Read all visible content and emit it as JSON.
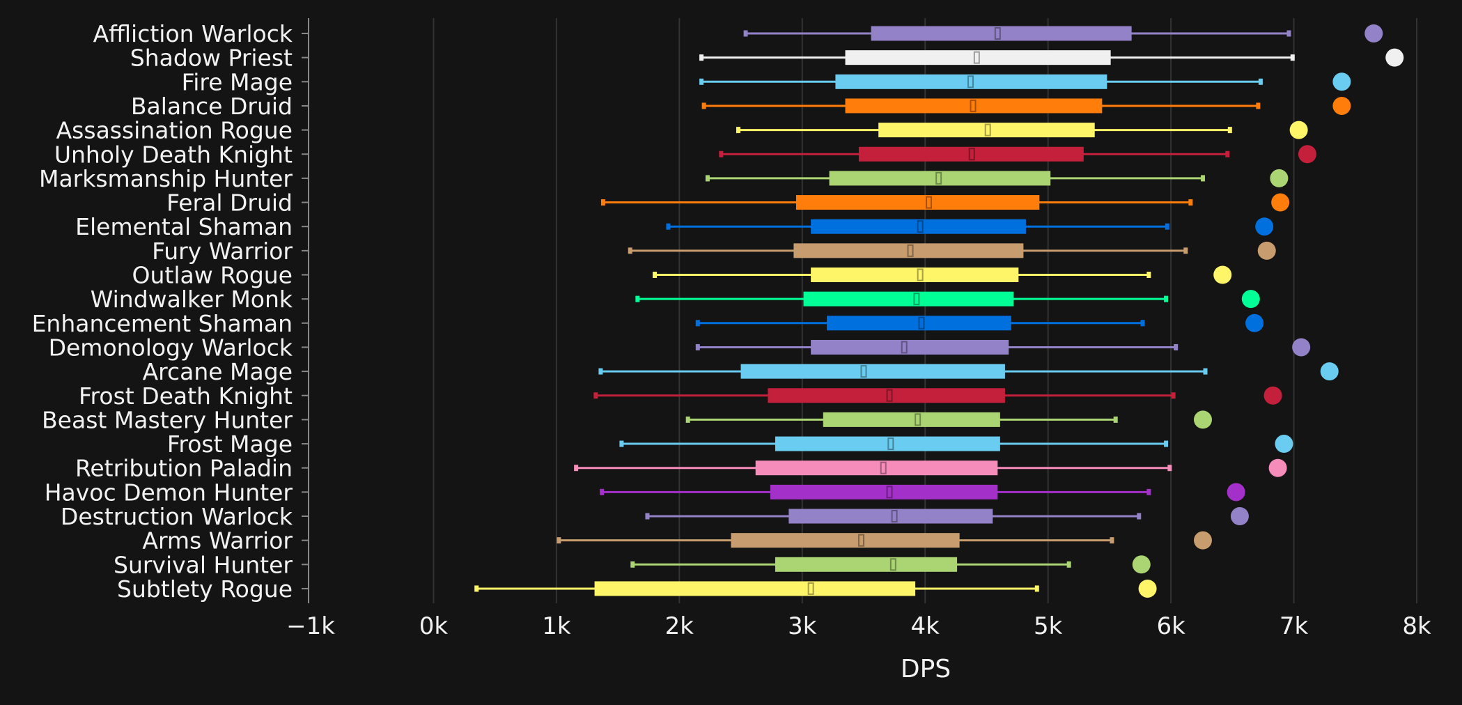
{
  "chart_data": {
    "type": "box",
    "xlabel": "DPS",
    "ylabel": "",
    "xlim": [
      -1000,
      8000
    ],
    "x_ticks": [
      {
        "value": -1000,
        "label": "−1k"
      },
      {
        "value": 0,
        "label": "0k"
      },
      {
        "value": 1000,
        "label": "1k"
      },
      {
        "value": 2000,
        "label": "2k"
      },
      {
        "value": 3000,
        "label": "3k"
      },
      {
        "value": 4000,
        "label": "4k"
      },
      {
        "value": 5000,
        "label": "5k"
      },
      {
        "value": 6000,
        "label": "6k"
      },
      {
        "value": 7000,
        "label": "7k"
      },
      {
        "value": 8000,
        "label": "8k"
      }
    ],
    "grid": true,
    "series": [
      {
        "name": "Affliction Warlock",
        "color": "#9482C9",
        "min": 2540,
        "q1": 3560,
        "median": 4590,
        "q3": 5680,
        "max": 6960,
        "max_point": 7650
      },
      {
        "name": "Shadow Priest",
        "color": "#F0F0F0",
        "min": 2180,
        "q1": 3350,
        "median": 4420,
        "q3": 5510,
        "max": 6990,
        "max_point": 7820
      },
      {
        "name": "Fire Mage",
        "color": "#69CCF0",
        "min": 2180,
        "q1": 3270,
        "median": 4370,
        "q3": 5480,
        "max": 6730,
        "max_point": 7390
      },
      {
        "name": "Balance Druid",
        "color": "#FF7D0A",
        "min": 2200,
        "q1": 3350,
        "median": 4390,
        "q3": 5440,
        "max": 6710,
        "max_point": 7390
      },
      {
        "name": "Assassination Rogue",
        "color": "#FFF569",
        "min": 2480,
        "q1": 3620,
        "median": 4510,
        "q3": 5380,
        "max": 6480,
        "max_point": 7040
      },
      {
        "name": "Unholy Death Knight",
        "color": "#C41F3B",
        "min": 2340,
        "q1": 3460,
        "median": 4380,
        "q3": 5290,
        "max": 6460,
        "max_point": 7110
      },
      {
        "name": "Marksmanship Hunter",
        "color": "#ABD473",
        "min": 2230,
        "q1": 3220,
        "median": 4110,
        "q3": 5020,
        "max": 6260,
        "max_point": 6880
      },
      {
        "name": "Feral Druid",
        "color": "#FF7D0A",
        "min": 1380,
        "q1": 2950,
        "median": 4030,
        "q3": 4930,
        "max": 6160,
        "max_point": 6890
      },
      {
        "name": "Elemental Shaman",
        "color": "#0070DE",
        "min": 1910,
        "q1": 3070,
        "median": 3960,
        "q3": 4820,
        "max": 5970,
        "max_point": 6760
      },
      {
        "name": "Fury Warrior",
        "color": "#C79C6E",
        "min": 1600,
        "q1": 2930,
        "median": 3880,
        "q3": 4800,
        "max": 6120,
        "max_point": 6780
      },
      {
        "name": "Outlaw Rogue",
        "color": "#FFF569",
        "min": 1800,
        "q1": 3070,
        "median": 3960,
        "q3": 4760,
        "max": 5820,
        "max_point": 6420
      },
      {
        "name": "Windwalker Monk",
        "color": "#00FF96",
        "min": 1660,
        "q1": 3010,
        "median": 3930,
        "q3": 4720,
        "max": 5960,
        "max_point": 6650
      },
      {
        "name": "Enhancement Shaman",
        "color": "#0070DE",
        "min": 2150,
        "q1": 3200,
        "median": 3970,
        "q3": 4700,
        "max": 5770,
        "max_point": 6680
      },
      {
        "name": "Demonology Warlock",
        "color": "#9482C9",
        "min": 2150,
        "q1": 3070,
        "median": 3830,
        "q3": 4680,
        "max": 6040,
        "max_point": 7060
      },
      {
        "name": "Arcane Mage",
        "color": "#69CCF0",
        "min": 1360,
        "q1": 2500,
        "median": 3500,
        "q3": 4650,
        "max": 6280,
        "max_point": 7290
      },
      {
        "name": "Frost Death Knight",
        "color": "#C41F3B",
        "min": 1320,
        "q1": 2720,
        "median": 3710,
        "q3": 4650,
        "max": 6020,
        "max_point": 6830
      },
      {
        "name": "Beast Mastery Hunter",
        "color": "#ABD473",
        "min": 2070,
        "q1": 3170,
        "median": 3940,
        "q3": 4610,
        "max": 5550,
        "max_point": 6260
      },
      {
        "name": "Frost Mage",
        "color": "#69CCF0",
        "min": 1530,
        "q1": 2780,
        "median": 3720,
        "q3": 4610,
        "max": 5960,
        "max_point": 6920
      },
      {
        "name": "Retribution Paladin",
        "color": "#F58CBA",
        "min": 1160,
        "q1": 2620,
        "median": 3660,
        "q3": 4590,
        "max": 5990,
        "max_point": 6870
      },
      {
        "name": "Havoc Demon Hunter",
        "color": "#A330C9",
        "min": 1370,
        "q1": 2740,
        "median": 3710,
        "q3": 4590,
        "max": 5820,
        "max_point": 6530
      },
      {
        "name": "Destruction Warlock",
        "color": "#9482C9",
        "min": 1740,
        "q1": 2890,
        "median": 3750,
        "q3": 4550,
        "max": 5740,
        "max_point": 6560
      },
      {
        "name": "Arms Warrior",
        "color": "#C79C6E",
        "min": 1020,
        "q1": 2420,
        "median": 3480,
        "q3": 4280,
        "max": 5520,
        "max_point": 6260
      },
      {
        "name": "Survival Hunter",
        "color": "#ABD473",
        "min": 1620,
        "q1": 2780,
        "median": 3740,
        "q3": 4260,
        "max": 5170,
        "max_point": 5760
      },
      {
        "name": "Subtlety Rogue",
        "color": "#FFF569",
        "min": 350,
        "q1": 1310,
        "median": 3070,
        "q3": 3920,
        "max": 4910,
        "max_point": 5810
      }
    ]
  }
}
